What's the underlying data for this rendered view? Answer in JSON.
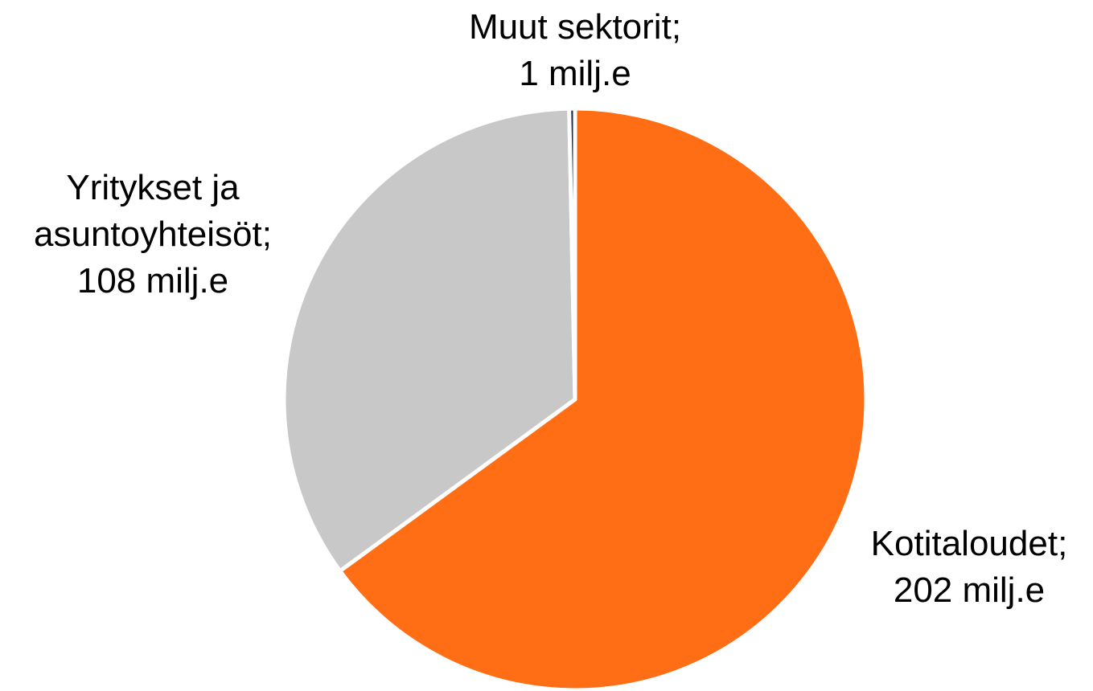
{
  "chart_data": {
    "type": "pie",
    "categories": [
      "Kotitaloudet",
      "Yritykset ja asuntoyhteisöt",
      "Muut sektorit"
    ],
    "label_separator": ";",
    "values": [
      202,
      108,
      1
    ],
    "value_labels": [
      "202 milj.e",
      "108 milj.e",
      "1 milj.e"
    ],
    "colors": [
      "#ff6d14",
      "#c8c8c8",
      "#1f2d4a"
    ]
  }
}
